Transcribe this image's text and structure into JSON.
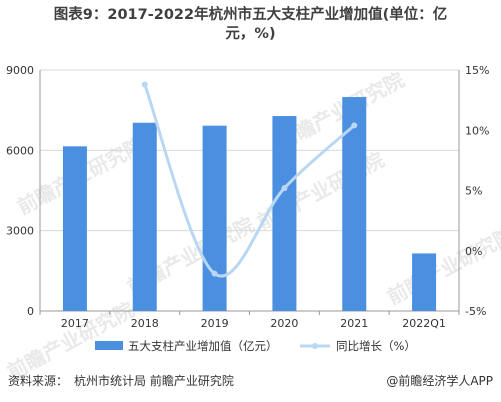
{
  "title_line1": "图表9：2017-2022年杭州市五大支柱产业增加值(单位：亿",
  "title_line2": "元，%)",
  "footer": {
    "source_label": "资料来源：",
    "source_text": "杭州市统计局 前瞻产业研究院",
    "brand": "@前瞻经济学人APP"
  },
  "watermark": "前瞻产业研究院",
  "colors": {
    "bar": "#4a8fe0",
    "line": "#b9d7f2",
    "axis": "#999999",
    "grid": "#d9d9d9"
  },
  "chart_data": {
    "type": "bar",
    "categories": [
      "2017",
      "2018",
      "2019",
      "2020",
      "2021",
      "2022Q1"
    ],
    "series": [
      {
        "name": "五大支柱产业增加值（亿元）",
        "type": "bar",
        "axis": "left",
        "values": [
          6150,
          7030,
          6920,
          7280,
          7990,
          2150
        ]
      },
      {
        "name": "同比增长（%）",
        "type": "line",
        "axis": "right",
        "values": [
          null,
          13.8,
          -1.9,
          5.2,
          10.4,
          null
        ]
      }
    ],
    "y_left": {
      "min": 0,
      "max": 9000,
      "ticks": [
        "0",
        "3000",
        "6000",
        "9000"
      ]
    },
    "y_right": {
      "min": -5,
      "max": 15,
      "ticks": [
        "-5%",
        "0%",
        "5%",
        "10%",
        "15%"
      ]
    },
    "legend": {
      "position": "bottom"
    }
  }
}
